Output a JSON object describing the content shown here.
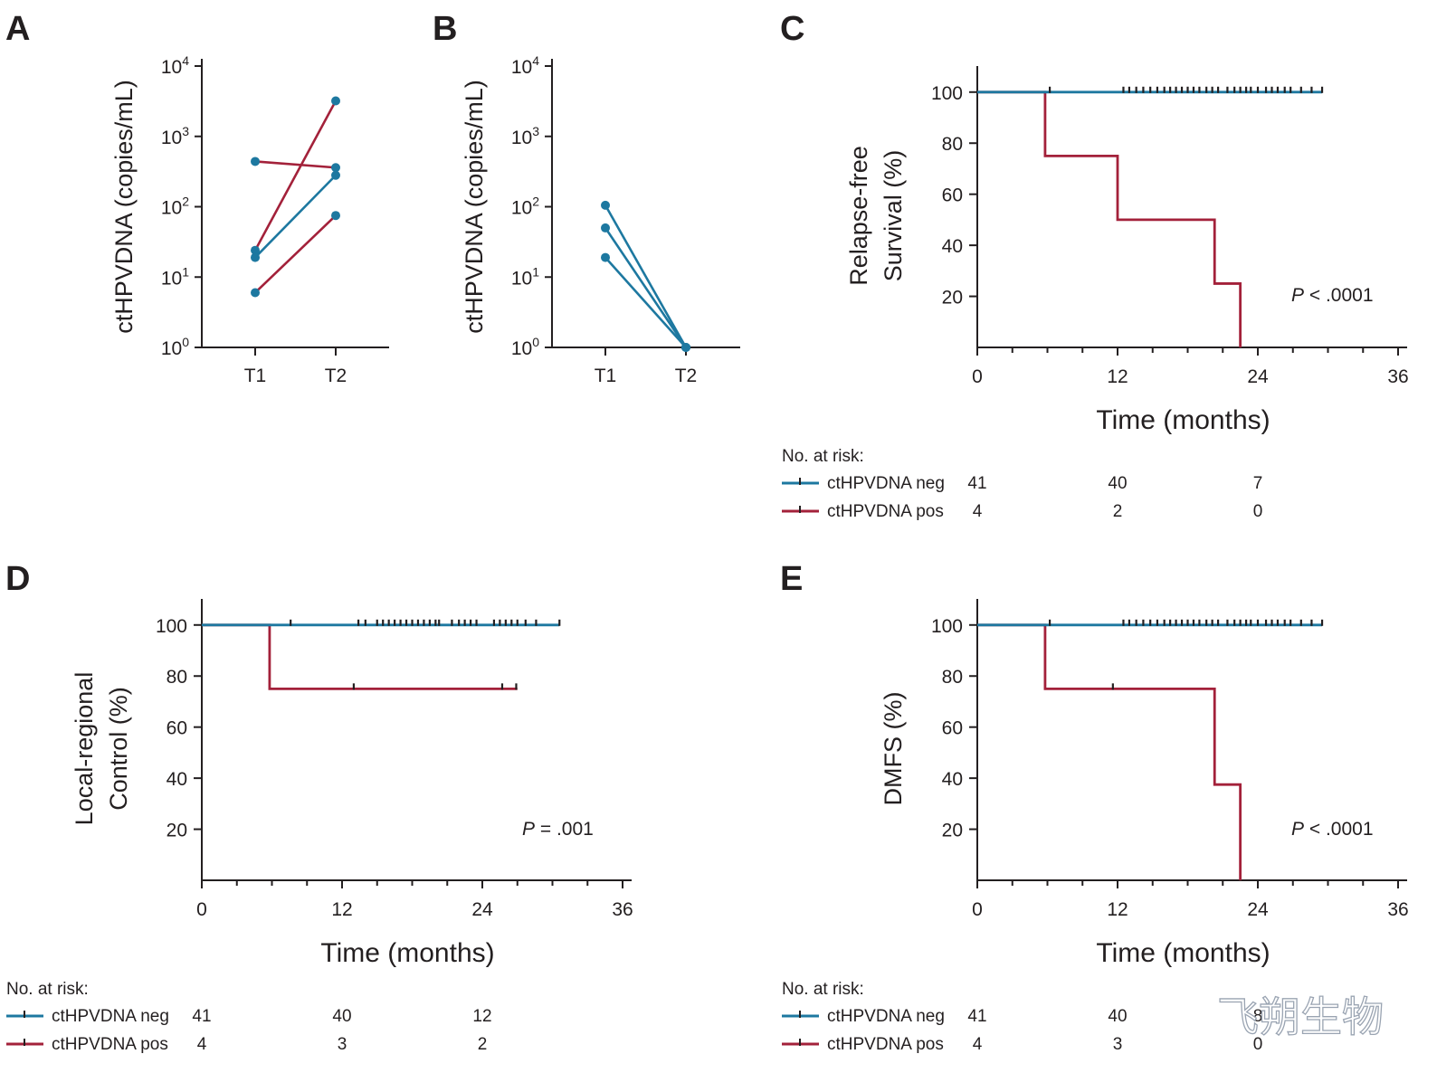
{
  "colors": {
    "neg": "#1d78a0",
    "pos": "#a3213a",
    "axis": "#231f20"
  },
  "watermark": "飞朔生物",
  "chart_data": [
    {
      "panel": "A",
      "type": "line",
      "ylabel": "ctHPVDNA (copies/mL)",
      "yscale": "log",
      "yticks": [
        0,
        1,
        2,
        3,
        4
      ],
      "ytick_base": "10",
      "categories": [
        "T1",
        "T2"
      ],
      "series": [
        {
          "color": "pos",
          "values": [
            440,
            360
          ]
        },
        {
          "color": "pos",
          "values": [
            24,
            3200
          ]
        },
        {
          "color": "neg",
          "values": [
            19,
            280
          ]
        },
        {
          "color": "pos",
          "values": [
            6,
            75
          ]
        }
      ]
    },
    {
      "panel": "B",
      "type": "line",
      "ylabel": "ctHPVDNA (copies/mL)",
      "yscale": "log",
      "yticks": [
        0,
        1,
        2,
        3,
        4
      ],
      "ytick_base": "10",
      "categories": [
        "T1",
        "T2"
      ],
      "series": [
        {
          "color": "neg",
          "values": [
            105,
            1
          ]
        },
        {
          "color": "neg",
          "values": [
            50,
            1
          ]
        },
        {
          "color": "neg",
          "values": [
            19,
            1
          ]
        }
      ]
    },
    {
      "panel": "C",
      "type": "line",
      "subtype": "kaplan-meier",
      "ylabel": [
        "Relapse-free",
        "Survival (%)"
      ],
      "xlabel": "Time (months)",
      "xticks": [
        0,
        12,
        24,
        36
      ],
      "yticks": [
        20,
        40,
        60,
        80,
        100
      ],
      "xlim": [
        0,
        36
      ],
      "ylim": [
        0,
        110
      ],
      "ptext_label": "P",
      "ptext_value": " < .0001",
      "risk_title": "No. at risk:",
      "series": [
        {
          "name": "ctHPVDNA neg",
          "color": "neg",
          "steps": [
            [
              0,
              100
            ],
            [
              29.5,
              100
            ]
          ],
          "censor": [
            6.2,
            12.5,
            13,
            13.6,
            14.2,
            14.8,
            15.4,
            16,
            16.5,
            17,
            17.5,
            18,
            18.5,
            19,
            19.6,
            20.1,
            20.6,
            21.4,
            22,
            22.5,
            23,
            23.4,
            24,
            24.7,
            25.2,
            25.7,
            26.3,
            26.8,
            27.7,
            28.6,
            29.5
          ],
          "risk": [
            41,
            40,
            7
          ]
        },
        {
          "name": "ctHPVDNA pos",
          "color": "pos",
          "steps": [
            [
              0,
              100
            ],
            [
              5.8,
              75
            ],
            [
              12,
              50
            ],
            [
              20.3,
              25
            ],
            [
              22.5,
              0
            ]
          ],
          "censor": [],
          "risk": [
            4,
            2,
            0
          ]
        }
      ]
    },
    {
      "panel": "D",
      "type": "line",
      "subtype": "kaplan-meier",
      "ylabel": [
        "Local-regional",
        "Control (%)"
      ],
      "xlabel": "Time (months)",
      "xticks": [
        0,
        12,
        24,
        36
      ],
      "yticks": [
        20,
        40,
        60,
        80,
        100
      ],
      "xlim": [
        0,
        36
      ],
      "ylim": [
        0,
        110
      ],
      "ptext_label": "P",
      "ptext_value": " = .001",
      "risk_title": "No. at risk:",
      "series": [
        {
          "name": "ctHPVDNA neg",
          "color": "neg",
          "steps": [
            [
              0,
              100
            ],
            [
              30.6,
              100
            ]
          ],
          "censor": [
            7.6,
            13.4,
            14,
            15,
            15.5,
            16,
            16.5,
            17,
            17.5,
            18,
            18.5,
            19,
            19.5,
            20,
            20.3,
            21.4,
            22,
            22.5,
            23,
            23.5,
            25,
            25.5,
            26,
            26.5,
            27,
            27.7,
            28.6,
            30.6
          ],
          "risk": [
            41,
            40,
            12
          ]
        },
        {
          "name": "ctHPVDNA pos",
          "color": "pos",
          "steps": [
            [
              0,
              100
            ],
            [
              5.8,
              75
            ],
            [
              27,
              75
            ]
          ],
          "censor": [
            13,
            25.7,
            26.9
          ],
          "risk": [
            4,
            3,
            2
          ]
        }
      ]
    },
    {
      "panel": "E",
      "type": "line",
      "subtype": "kaplan-meier",
      "ylabel": [
        "DMFS (%)"
      ],
      "xlabel": "Time (months)",
      "xticks": [
        0,
        12,
        24,
        36
      ],
      "yticks": [
        20,
        40,
        60,
        80,
        100
      ],
      "xlim": [
        0,
        36
      ],
      "ylim": [
        0,
        110
      ],
      "ptext_label": "P",
      "ptext_value": " < .0001",
      "risk_title": "No. at risk:",
      "series": [
        {
          "name": "ctHPVDNA neg",
          "color": "neg",
          "steps": [
            [
              0,
              100
            ],
            [
              29.5,
              100
            ]
          ],
          "censor": [
            6.2,
            12.5,
            13,
            13.6,
            14.2,
            14.8,
            15.4,
            16,
            16.5,
            17,
            17.5,
            18,
            18.5,
            19,
            19.6,
            20.1,
            20.6,
            21.4,
            22,
            22.5,
            23,
            23.4,
            24,
            24.7,
            25.2,
            25.7,
            26.3,
            26.8,
            27.7,
            28.6,
            29.5
          ],
          "risk": [
            41,
            40,
            8
          ]
        },
        {
          "name": "ctHPVDNA pos",
          "color": "pos",
          "steps": [
            [
              0,
              100
            ],
            [
              5.8,
              75
            ],
            [
              20.3,
              37.5
            ],
            [
              22.5,
              0
            ]
          ],
          "censor": [
            11.6
          ],
          "risk": [
            4,
            3,
            0
          ]
        }
      ]
    }
  ]
}
